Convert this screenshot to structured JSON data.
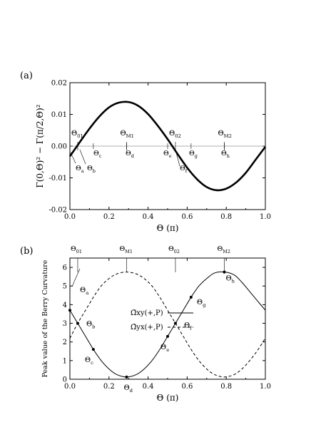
{
  "chart_data": [
    {
      "panel_label": "(a)",
      "type": "line",
      "ylabel": "Γ(0,Θ)² − Γ(π/2,Θ)²",
      "xlabel": "Θ (π)",
      "xlim": [
        0,
        1
      ],
      "ylim": [
        -0.02,
        0.02
      ],
      "xticks": [
        "0.0",
        "0.2",
        "0.4",
        "0.6",
        "0.8",
        "1.0"
      ],
      "yticks": [
        "-0.02",
        "-0.01",
        "0.00",
        "0.01",
        "0.02"
      ],
      "series": [
        {
          "style": "solid-thick",
          "x": [
            0,
            0.05,
            0.1,
            0.15,
            0.2,
            0.25,
            0.3,
            0.35,
            0.4,
            0.45,
            0.5,
            0.55,
            0.6,
            0.65,
            0.7,
            0.75,
            0.8,
            0.85,
            0.9,
            0.95,
            1.0
          ],
          "y": [
            -0.0032,
            0.0012,
            0.0055,
            0.0093,
            0.0122,
            0.0137,
            0.0139,
            0.0127,
            0.0101,
            0.0064,
            0.0022,
            -0.0024,
            -0.0068,
            -0.0104,
            -0.0129,
            -0.0139,
            -0.0134,
            -0.0115,
            -0.0084,
            -0.0043,
            -0.0002
          ]
        }
      ],
      "labels": [
        {
          "text": "Θ01",
          "x": 0.04
        },
        {
          "text": "ΘM1",
          "x": 0.29
        },
        {
          "text": "Θ02",
          "x": 0.54
        },
        {
          "text": "ΘM2",
          "x": 0.79
        },
        {
          "text": "Θa",
          "x": 0.0
        },
        {
          "text": "Θb",
          "x": 0.05
        },
        {
          "text": "Θc",
          "x": 0.12
        },
        {
          "text": "Θd",
          "x": 0.29
        },
        {
          "text": "Θe",
          "x": 0.5
        },
        {
          "text": "Θf",
          "x": 0.54
        },
        {
          "text": "Θg",
          "x": 0.62
        },
        {
          "text": "Θh",
          "x": 0.79
        }
      ]
    },
    {
      "panel_label": "(b)",
      "type": "line",
      "ylabel": "Peak value of the Berry Curvature",
      "xlabel": "Θ (π)",
      "xlim": [
        0,
        1
      ],
      "ylim": [
        0,
        6.5
      ],
      "xticks": [
        "0.0",
        "0.2",
        "0.4",
        "0.6",
        "0.8",
        "1.0"
      ],
      "yticks": [
        "0",
        "1",
        "2",
        "3",
        "4",
        "5",
        "6"
      ],
      "top_labels": [
        {
          "text": "Θ01",
          "x": 0.04
        },
        {
          "text": "ΘM1",
          "x": 0.29
        },
        {
          "text": "Θ02",
          "x": 0.54
        },
        {
          "text": "ΘM2",
          "x": 0.79
        }
      ],
      "legend": [
        {
          "name": "Ω̃xy(+,P)",
          "style": "solid"
        },
        {
          "name": "Ω̃yx(+,P)",
          "style": "dashed"
        }
      ],
      "legend_placement": "center",
      "series": [
        {
          "name": "Ω̃xy(+,P)",
          "style": "solid",
          "x": [
            0,
            0.04,
            0.08,
            0.12,
            0.16,
            0.2,
            0.24,
            0.29,
            0.34,
            0.38,
            0.42,
            0.46,
            0.5,
            0.54,
            0.58,
            0.62,
            0.66,
            0.7,
            0.74,
            0.79,
            0.84,
            0.88,
            0.92,
            0.96,
            1.0
          ],
          "y": [
            3.7,
            3.0,
            2.3,
            1.6,
            1.0,
            0.55,
            0.25,
            0.12,
            0.25,
            0.55,
            1.0,
            1.6,
            2.3,
            3.0,
            3.7,
            4.4,
            5.0,
            5.4,
            5.7,
            5.75,
            5.6,
            5.2,
            4.7,
            4.2,
            3.7
          ]
        },
        {
          "name": "Ω̃yx(+,P)",
          "style": "dashed",
          "x": [
            0,
            0.04,
            0.08,
            0.12,
            0.16,
            0.2,
            0.24,
            0.29,
            0.34,
            0.38,
            0.42,
            0.46,
            0.5,
            0.54,
            0.58,
            0.62,
            0.66,
            0.7,
            0.74,
            0.79,
            0.84,
            0.88,
            0.92,
            0.96,
            1.0
          ],
          "y": [
            2.2,
            3.0,
            3.7,
            4.4,
            5.0,
            5.4,
            5.65,
            5.75,
            5.65,
            5.4,
            5.0,
            4.4,
            3.7,
            3.0,
            2.3,
            1.6,
            1.0,
            0.55,
            0.25,
            0.12,
            0.25,
            0.55,
            1.0,
            1.55,
            2.2
          ]
        }
      ],
      "point_labels": [
        {
          "text": "Θa",
          "x": 0.0,
          "y": 3.7
        },
        {
          "text": "Θb",
          "x": 0.04,
          "y": 3.0
        },
        {
          "text": "Θc",
          "x": 0.12,
          "y": 1.6
        },
        {
          "text": "Θd",
          "x": 0.29,
          "y": 0.12
        },
        {
          "text": "Θe",
          "x": 0.5,
          "y": 2.3
        },
        {
          "text": "Θf",
          "x": 0.54,
          "y": 3.0
        },
        {
          "text": "Θg",
          "x": 0.62,
          "y": 4.4
        },
        {
          "text": "Θh",
          "x": 0.79,
          "y": 5.75
        }
      ]
    }
  ]
}
